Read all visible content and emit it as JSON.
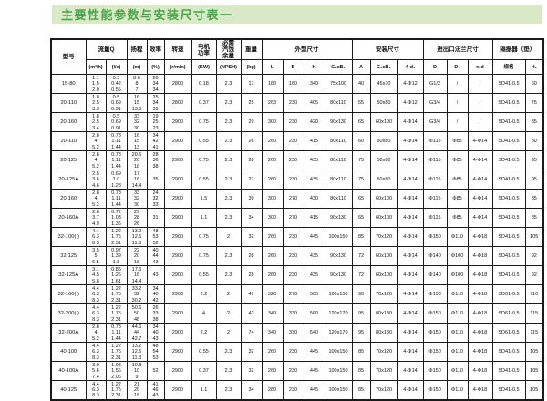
{
  "title": "主要性能参数与安装尺寸表一",
  "colors": {
    "accent_green": "#4aa54a",
    "band_bg": "#d9e8c6",
    "table_border": "#1a1a1a"
  },
  "table": {
    "header": {
      "model": "型号",
      "flow_group": "流量Q",
      "flow_m3h": "(m³/h)",
      "flow_ls": "(l/s)",
      "head": "扬程",
      "head_unit": "(m)",
      "eff": "效率",
      "eff_unit": "(%)",
      "speed": "转速",
      "speed_unit": "(r/min)",
      "power": "电机\n功率",
      "power_unit": "(KW)",
      "npsh": "必需\n汽蚀\n余量",
      "npsh_unit": "(NPSH)",
      "weight": "重量",
      "weight_unit": "(kg)",
      "dims_group": "外型尺寸",
      "L": "L",
      "B": "B",
      "H": "H",
      "c1b1": "C₁xB₁",
      "install_group": "安装尺寸",
      "A": "A",
      "c2b2": "C₂xB₂",
      "d1": "4-d₁",
      "flange_group": "进出口法兰尺寸",
      "D": "D",
      "D1": "D₁",
      "nd": "n-d",
      "isolator_group": "隔振器（垫）",
      "spec": "规格",
      "h1": "H₁"
    },
    "columns": [
      "model",
      "q_m3h",
      "q_ls",
      "head",
      "eff",
      "speed",
      "power",
      "npsh",
      "weight",
      "L",
      "B",
      "H",
      "c1b1",
      "A",
      "c2b2",
      "d1",
      "D",
      "D1",
      "nd",
      "spec",
      "h1"
    ],
    "rows": [
      {
        "model": "15-80",
        "q_m3h": [
          "1.1",
          "1.5",
          "2.0"
        ],
        "q_ls": [
          "0.3",
          "0.42",
          "0.55"
        ],
        "head": [
          "8.6",
          "8",
          "7"
        ],
        "eff": [
          "26",
          "34",
          "34"
        ],
        "speed": "2800",
        "power": "0.18",
        "npsh": "2.3",
        "weight": "17",
        "L": "180",
        "B": "160",
        "H": "340",
        "c1b1": "75x100",
        "A": "40",
        "c2b2": "45x70",
        "d1": "4-Φ12",
        "D": "G1/2",
        "D1": "/",
        "nd": "/",
        "spec": "SD41-0.5",
        "h1": "60"
      },
      {
        "model": "20-110",
        "q_m3h": [
          "1.8",
          "2.5",
          "3.3"
        ],
        "q_ls": [
          "0.5",
          "0.69",
          "0.91"
        ],
        "head": [
          "16",
          "15",
          "13.5"
        ],
        "eff": [
          "25",
          "34",
          "35"
        ],
        "speed": "2800",
        "power": "0.37",
        "npsh": "2.3",
        "weight": "25",
        "L": "263",
        "B": "230",
        "H": "405",
        "c1b1": "80x110",
        "A": "55",
        "c2b2": "50x80",
        "d1": "4-Φ12",
        "D": "G3/4",
        "D1": "/",
        "nd": "/",
        "spec": "SD41-0.5",
        "h1": "75"
      },
      {
        "model": "20-160",
        "q_m3h": [
          "1.8",
          "2.5",
          "3.4"
        ],
        "q_ls": [
          "0.5",
          "0.69",
          "0.91"
        ],
        "head": [
          "33",
          "32",
          "30"
        ],
        "eff": [
          "19",
          "25",
          "23"
        ],
        "speed": "2900",
        "power": "0.75",
        "npsh": "2.3",
        "weight": "29",
        "L": "300",
        "B": "230",
        "H": "420",
        "c1b1": "90x130",
        "A": "65",
        "c2b2": "60x100",
        "d1": "4-Φ14",
        "D": "G3/4",
        "D1": "/",
        "nd": "/",
        "spec": "SD41-0.5",
        "h1": "85"
      },
      {
        "model": "20-110",
        "q_m3h": [
          "2.8",
          "4",
          "5.2"
        ],
        "q_ls": [
          "0.78",
          "1.11",
          "1.44"
        ],
        "head": [
          "16",
          "15",
          "13"
        ],
        "eff": [
          "34",
          "42",
          "41"
        ],
        "speed": "2900",
        "power": "0.55",
        "npsh": "2.3",
        "weight": "26",
        "L": "260",
        "B": "230",
        "H": "415",
        "c1b1": "80x110",
        "A": "60",
        "c2b2": "50x80",
        "d1": "4-Φ14",
        "D": "Φ115",
        "D1": "Φ85",
        "nd": "4-Φ14",
        "spec": "SD41-0.5",
        "h1": "80"
      },
      {
        "model": "20-125",
        "q_m3h": [
          "2.8",
          "4",
          "5.2"
        ],
        "q_ls": [
          "0.78",
          "1.11",
          "1.44"
        ],
        "head": [
          "20.6",
          "20",
          "18"
        ],
        "eff": [
          "28",
          "36",
          "38"
        ],
        "speed": "2900",
        "power": "0.75",
        "npsh": "2.3",
        "weight": "28",
        "L": "260",
        "B": "230",
        "H": "435",
        "c1b1": "80x110",
        "A": "75",
        "c2b2": "50x80",
        "d1": "4-Φ14",
        "D": "Φ115",
        "D1": "Φ85",
        "nd": "4-Φ14",
        "spec": "SD41-0.5",
        "h1": "95"
      },
      {
        "model": "20-125A",
        "q_m3h": [
          "2.5",
          "3.6",
          "4.6"
        ],
        "q_ls": [
          "0.69",
          "1.0",
          "1.28"
        ],
        "head": [
          "17",
          "16",
          "14.4"
        ],
        "eff": "35",
        "speed": "2900",
        "power": "0.55",
        "npsh": "2.3",
        "weight": "27",
        "L": "260",
        "B": "230",
        "H": "435",
        "c1b1": "80x110",
        "A": "75",
        "c2b2": "50x80",
        "d1": "4-Φ14",
        "D": "Φ115",
        "D1": "Φ85",
        "nd": "4-Φ14",
        "spec": "SD41-0.5",
        "h1": "95"
      },
      {
        "model": "20-160",
        "q_m3h": [
          "2.8",
          "4",
          "5.2"
        ],
        "q_ls": [
          "0.78",
          "1.11",
          "1.44"
        ],
        "head": [
          "33",
          "32",
          "30"
        ],
        "eff": [
          "24",
          "32",
          "33"
        ],
        "speed": "2900",
        "power": "1.5",
        "npsh": "2.3",
        "weight": "39",
        "L": "300",
        "B": "270",
        "H": "430",
        "c1b1": "80x110",
        "A": "65",
        "c2b2": "60x100",
        "d1": "4-Φ14",
        "D": "Φ115",
        "D1": "Φ85",
        "nd": "4-Φ14",
        "spec": "SD41-0.5",
        "h1": "85"
      },
      {
        "model": "20-160A",
        "q_m3h": [
          "2.6",
          "3.7",
          "4.9"
        ],
        "q_ls": [
          "0.72",
          "1.03",
          "1.36"
        ],
        "head": [
          "29",
          "28",
          "26"
        ],
        "eff": "31",
        "speed": "2900",
        "power": "1.1",
        "npsh": "2.3",
        "weight": "34",
        "L": "300",
        "B": "270",
        "H": "415",
        "c1b1": "90x130",
        "A": "65",
        "c2b2": "60x100",
        "d1": "4-Φ14",
        "D": "Φ115",
        "D1": "Φ85",
        "nd": "4-Φ14",
        "spec": "SD41-0.5",
        "h1": "85"
      },
      {
        "model": "32-100(I)",
        "q_m3h": [
          "4.4",
          "6.3",
          "8.3"
        ],
        "q_ls": [
          "1.22",
          "1.75",
          "2.31"
        ],
        "head": [
          "13.2",
          "12.5",
          "11.3"
        ],
        "eff": [
          "48",
          "53",
          "52"
        ],
        "speed": "2900",
        "power": "0.75",
        "npsh": "2",
        "weight": "32",
        "L": "260",
        "B": "230",
        "H": "445",
        "c1b1": "100x150",
        "A": "85",
        "c2b2": "70x120",
        "d1": "4-Φ14",
        "D": "Φ150",
        "D1": "Φ110",
        "nd": "4-Φ18",
        "spec": "SD41-0.5",
        "h1": "105"
      },
      {
        "model": "32-125",
        "q_m3h": [
          "3.5",
          "5",
          "6.5"
        ],
        "q_ls": [
          "0.97",
          "1.39",
          "1.8"
        ],
        "head": [
          "22",
          "20",
          "18"
        ],
        "eff": [
          "40",
          "44",
          "43"
        ],
        "speed": "2900",
        "power": "0.75",
        "npsh": "2.3",
        "weight": "28",
        "L": "260",
        "B": "230",
        "H": "435",
        "c1b1": "90x130",
        "A": "72",
        "c2b2": "60x100",
        "d1": "4-Φ14",
        "D": "Φ140",
        "D1": "Φ100",
        "nd": "4-Φ18",
        "spec": "SD41-0.5",
        "h1": "92"
      },
      {
        "model": "32-125A",
        "q_m3h": [
          "3.1",
          "4.5",
          "5.8"
        ],
        "q_ls": [
          "0.86",
          "1.25",
          "1.61"
        ],
        "head": [
          "17.6",
          "16",
          "14.4"
        ],
        "eff": "43",
        "speed": "2900",
        "power": "0.55",
        "npsh": "2.3",
        "weight": "28",
        "L": "260",
        "B": "230",
        "H": "435",
        "c1b1": "90x130",
        "A": "72",
        "c2b2": "60x100",
        "d1": "4-Φ14",
        "D": "Φ140",
        "D1": "Φ100",
        "nd": "4-Φ18",
        "spec": "SD41-0.5",
        "h1": "92"
      },
      {
        "model": "32-160(I)",
        "q_m3h": [
          "4.4",
          "6.3",
          "8.3"
        ],
        "q_ls": [
          "1.22",
          "1.75",
          "2.31"
        ],
        "head": [
          "33.2",
          "32",
          "30.2"
        ],
        "eff": [
          "34",
          "40",
          "42"
        ],
        "speed": "2900",
        "power": "2.2",
        "npsh": "2",
        "weight": "47",
        "L": "320",
        "B": "270",
        "H": "505",
        "c1b1": "100x150",
        "A": "90",
        "c2b2": "70x120",
        "d1": "4-Φ14",
        "D": "Φ150",
        "D1": "Φ110",
        "nd": "4-Φ18",
        "spec": "SD61-0.5",
        "h1": "110"
      },
      {
        "model": "32-200(I)",
        "q_m3h": [
          "4.4",
          "6.3",
          "8.3"
        ],
        "q_ls": [
          "1.22",
          "1.75",
          "2.31"
        ],
        "head": [
          "50.6",
          "50",
          "48"
        ],
        "eff": [
          "26",
          "33",
          "38"
        ],
        "speed": "2900",
        "power": "4",
        "npsh": "2",
        "weight": "43",
        "L": "340",
        "B": "330",
        "H": "560",
        "c1b1": "120x170",
        "A": "95",
        "c2b2": "80x130",
        "d1": "4-Φ14",
        "D": "Φ150",
        "D1": "Φ110",
        "nd": "4-Φ18",
        "spec": "SD61-0.5",
        "h1": "115"
      },
      {
        "model": "32-200A",
        "q_m3h": [
          "2.8",
          "4",
          "5.2"
        ],
        "q_ls": [
          "0.78",
          "1.11",
          "1.44"
        ],
        "head": [
          "44.6",
          "44",
          "42.7"
        ],
        "eff": [
          "34",
          "40",
          "43"
        ],
        "speed": "2900",
        "power": "2.2",
        "npsh": "2",
        "weight": "74",
        "L": "340",
        "B": "330",
        "H": "540",
        "c1b1": "120x170",
        "A": "95",
        "c2b2": "80x130",
        "d1": "4-Φ14",
        "D": "Φ150",
        "D1": "Φ110",
        "nd": "4-Φ18",
        "spec": "SD61-0.5",
        "h1": "115"
      },
      {
        "model": "40-100",
        "q_m3h": [
          "4.4",
          "6.3",
          "8.3"
        ],
        "q_ls": [
          "1.22",
          "1.75",
          "2.31"
        ],
        "head": [
          "13.2",
          "12.5",
          "11.3"
        ],
        "eff": [
          "48",
          "54",
          "53"
        ],
        "speed": "2900",
        "power": "0.55",
        "npsh": "2.3",
        "weight": "32",
        "L": "260",
        "B": "230",
        "H": "445",
        "c1b1": "100x150",
        "A": "85",
        "c2b2": "70x120",
        "d1": "4-Φ14",
        "D": "Φ150",
        "D1": "Φ110",
        "nd": "4-Φ18",
        "spec": "SD41-0.5",
        "h1": "105"
      },
      {
        "model": "40-100A",
        "q_m3h": [
          "3.9",
          "5.6",
          "7.4"
        ],
        "q_ls": [
          "1.08",
          "1.56",
          "2.06"
        ],
        "head": [
          "10.8",
          "10",
          "9"
        ],
        "eff": "52",
        "speed": "2900",
        "power": "0.37",
        "npsh": "2.3",
        "weight": "32",
        "L": "260",
        "B": "230",
        "H": "445",
        "c1b1": "100x150",
        "A": "85",
        "c2b2": "70x120",
        "d1": "4-Φ14",
        "D": "Φ150",
        "D1": "Φ110",
        "nd": "4-Φ18",
        "spec": "SD41-0.5",
        "h1": "105"
      },
      {
        "model": "40-125",
        "q_m3h": [
          "4.4",
          "6.3",
          "8.3"
        ],
        "q_ls": [
          "1.22",
          "1.75",
          "2.31"
        ],
        "head": [
          "21",
          "20",
          "18"
        ],
        "eff": [
          "41",
          "46",
          "43"
        ],
        "speed": "2900",
        "power": "1.1",
        "npsh": "2.3",
        "weight": "34",
        "L": "280",
        "B": "230",
        "H": "445",
        "c1b1": "100x150",
        "A": "85",
        "c2b2": "70x120",
        "d1": "4-Φ14",
        "D": "Φ150",
        "D1": "Φ110",
        "nd": "4-Φ18",
        "spec": "SD41-0.5",
        "h1": "105"
      }
    ]
  }
}
